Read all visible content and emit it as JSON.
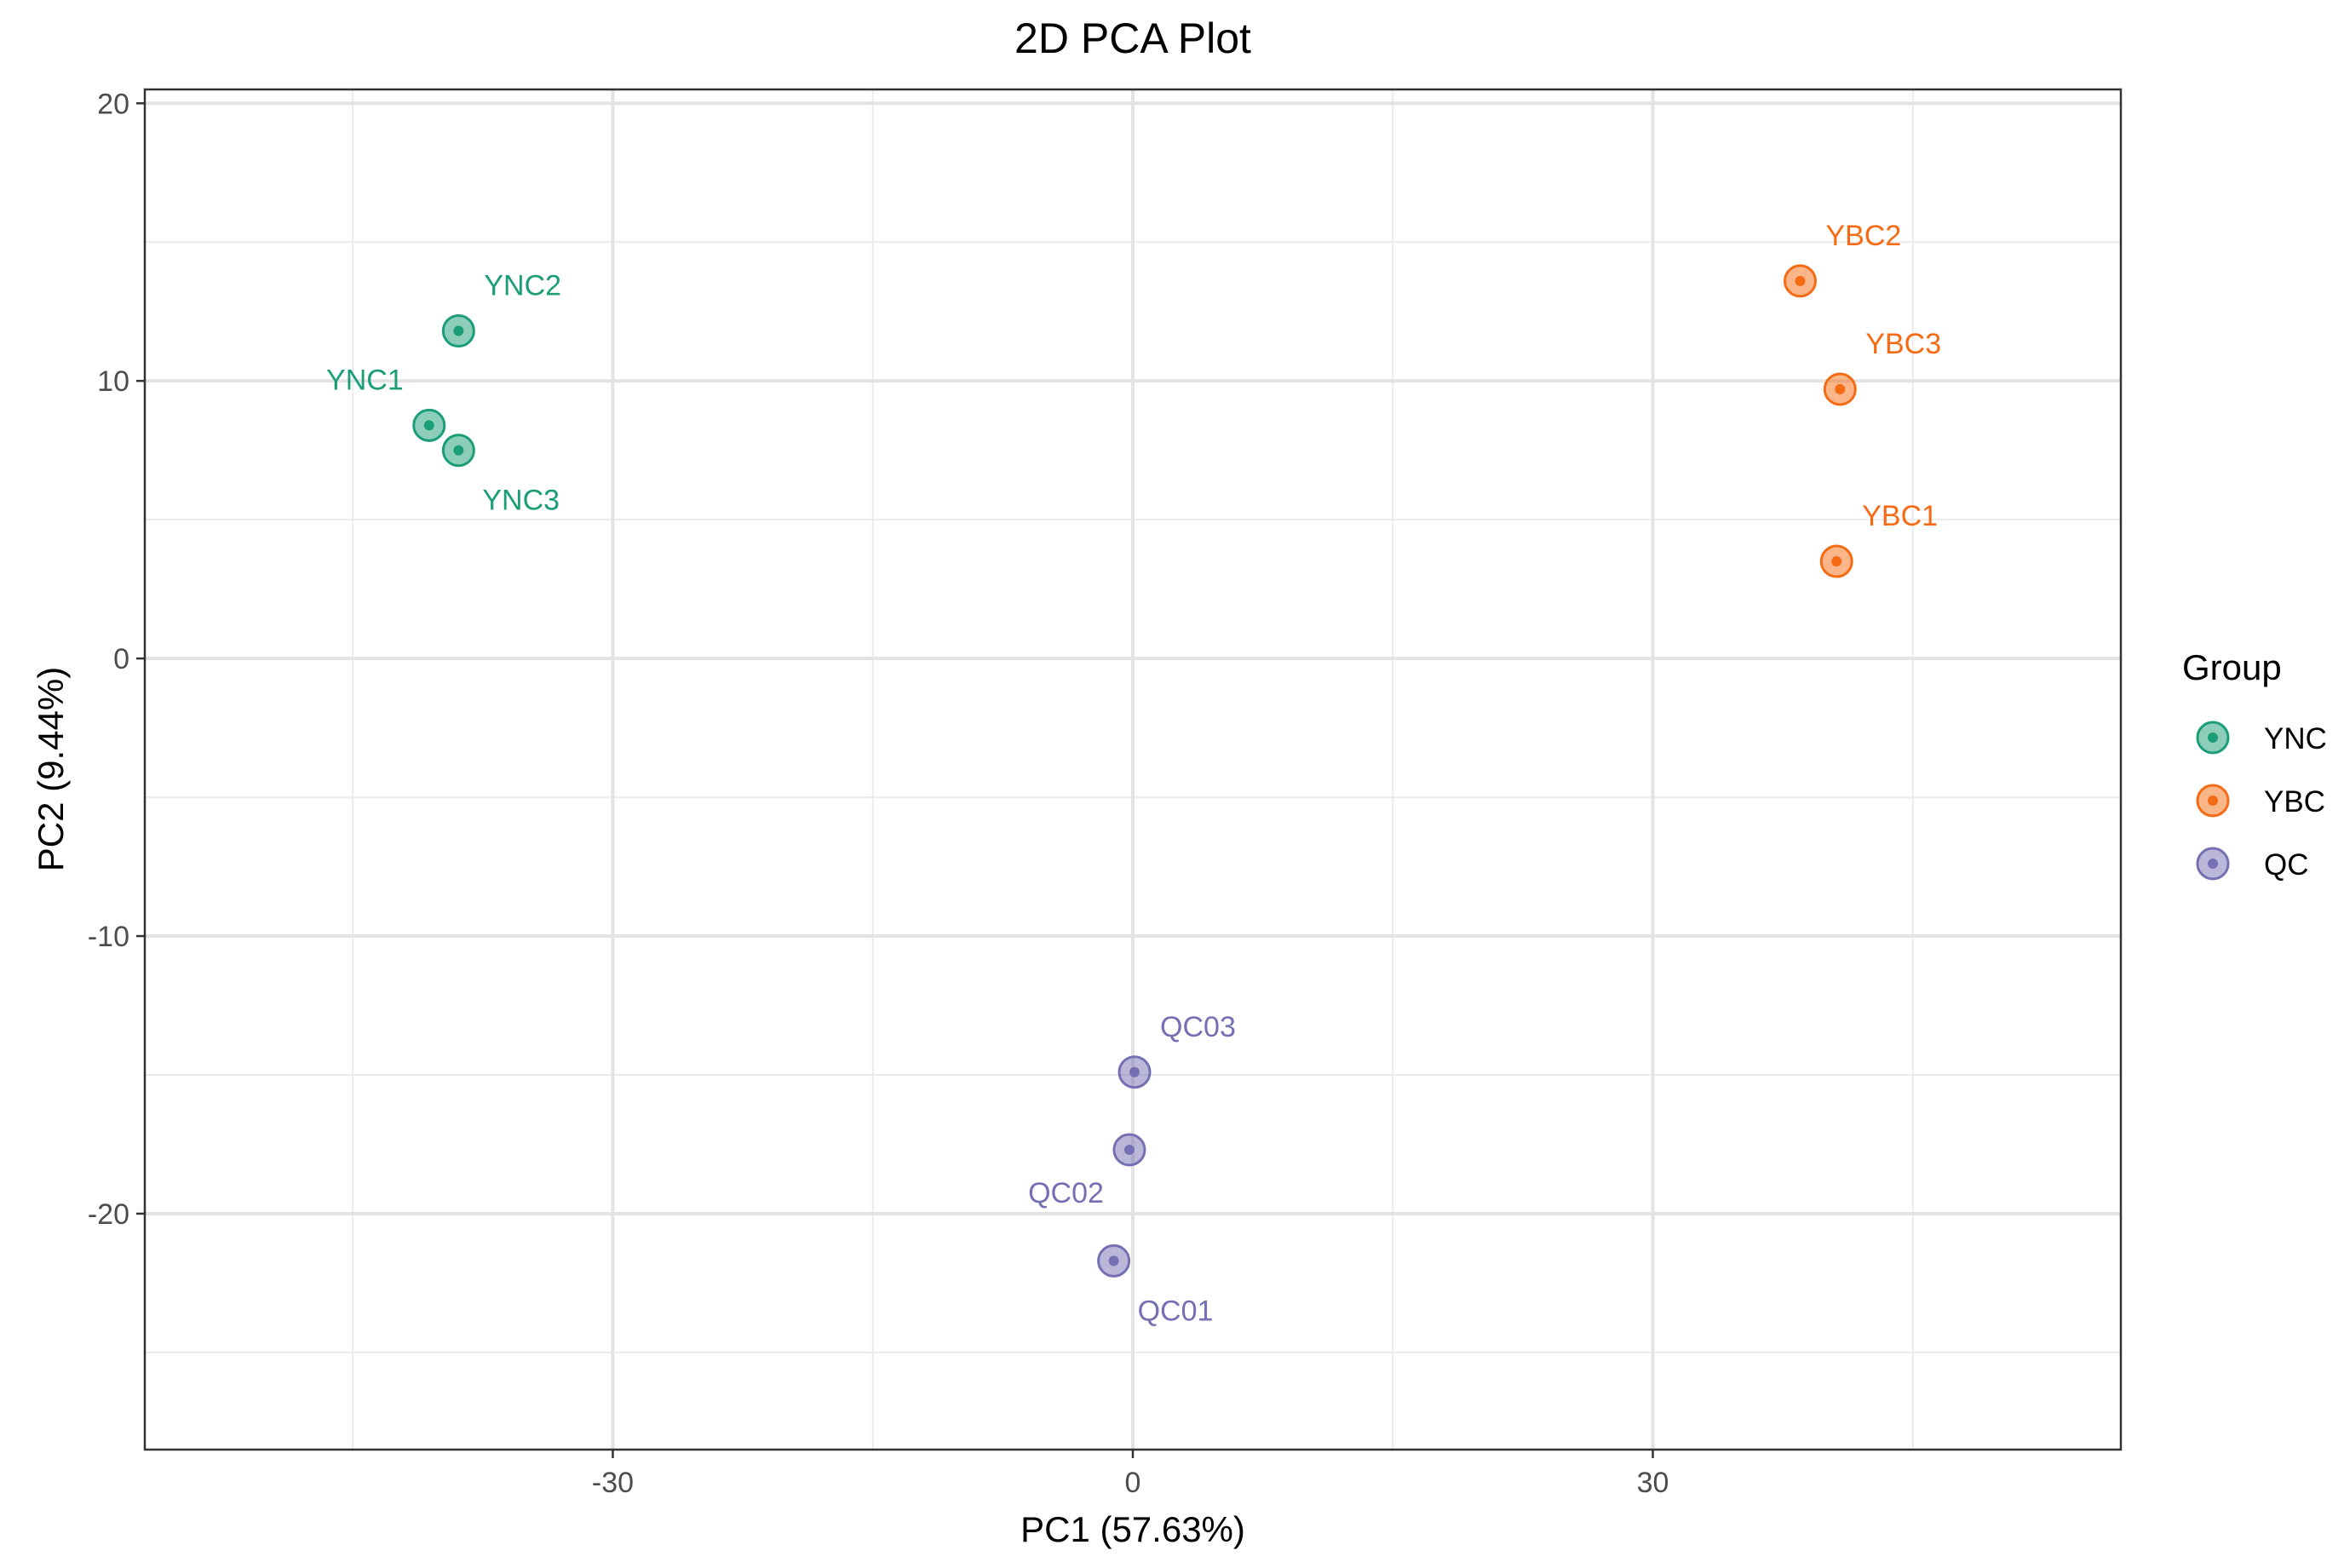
{
  "chart_data": {
    "type": "scatter",
    "title": "2D PCA Plot",
    "xlabel": "PC1 (57.63%)",
    "ylabel": "PC2 (9.44%)",
    "xlim": [
      -57,
      57
    ],
    "ylim": [
      -28.5,
      20.5
    ],
    "x_major_ticks": [
      -30,
      0,
      30
    ],
    "x_minor_ticks": [
      -45,
      -15,
      15,
      45
    ],
    "y_major_ticks": [
      -20,
      -10,
      0,
      10,
      20
    ],
    "y_minor_ticks": [
      -25,
      -15,
      -5,
      5,
      15
    ],
    "grid": true,
    "legend": {
      "title": "Group",
      "placement": "right"
    },
    "series": [
      {
        "name": "YNC",
        "color": "#1b9e77",
        "points": [
          {
            "label": "YNC1",
            "x": -40.6,
            "y": 8.4,
            "label_pos": "top-left"
          },
          {
            "label": "YNC2",
            "x": -38.9,
            "y": 11.8,
            "label_pos": "top-right"
          },
          {
            "label": "YNC3",
            "x": -38.9,
            "y": 7.5,
            "label_pos": "bottom-right"
          }
        ]
      },
      {
        "name": "YBC",
        "color": "#f56b13",
        "points": [
          {
            "label": "YBC1",
            "x": 40.6,
            "y": 3.5,
            "label_pos": "top-right"
          },
          {
            "label": "YBC2",
            "x": 38.5,
            "y": 13.6,
            "label_pos": "top-right"
          },
          {
            "label": "YBC3",
            "x": 40.8,
            "y": 9.7,
            "label_pos": "top-right"
          }
        ]
      },
      {
        "name": "QC",
        "color": "#7570b3",
        "points": [
          {
            "label": "QC01",
            "x": -1.1,
            "y": -21.7,
            "label_pos": "bottom-right"
          },
          {
            "label": "QC02",
            "x": -0.2,
            "y": -17.7,
            "label_pos": "bottom-left"
          },
          {
            "label": "QC03",
            "x": 0.1,
            "y": -14.9,
            "label_pos": "top-right"
          }
        ]
      }
    ]
  }
}
